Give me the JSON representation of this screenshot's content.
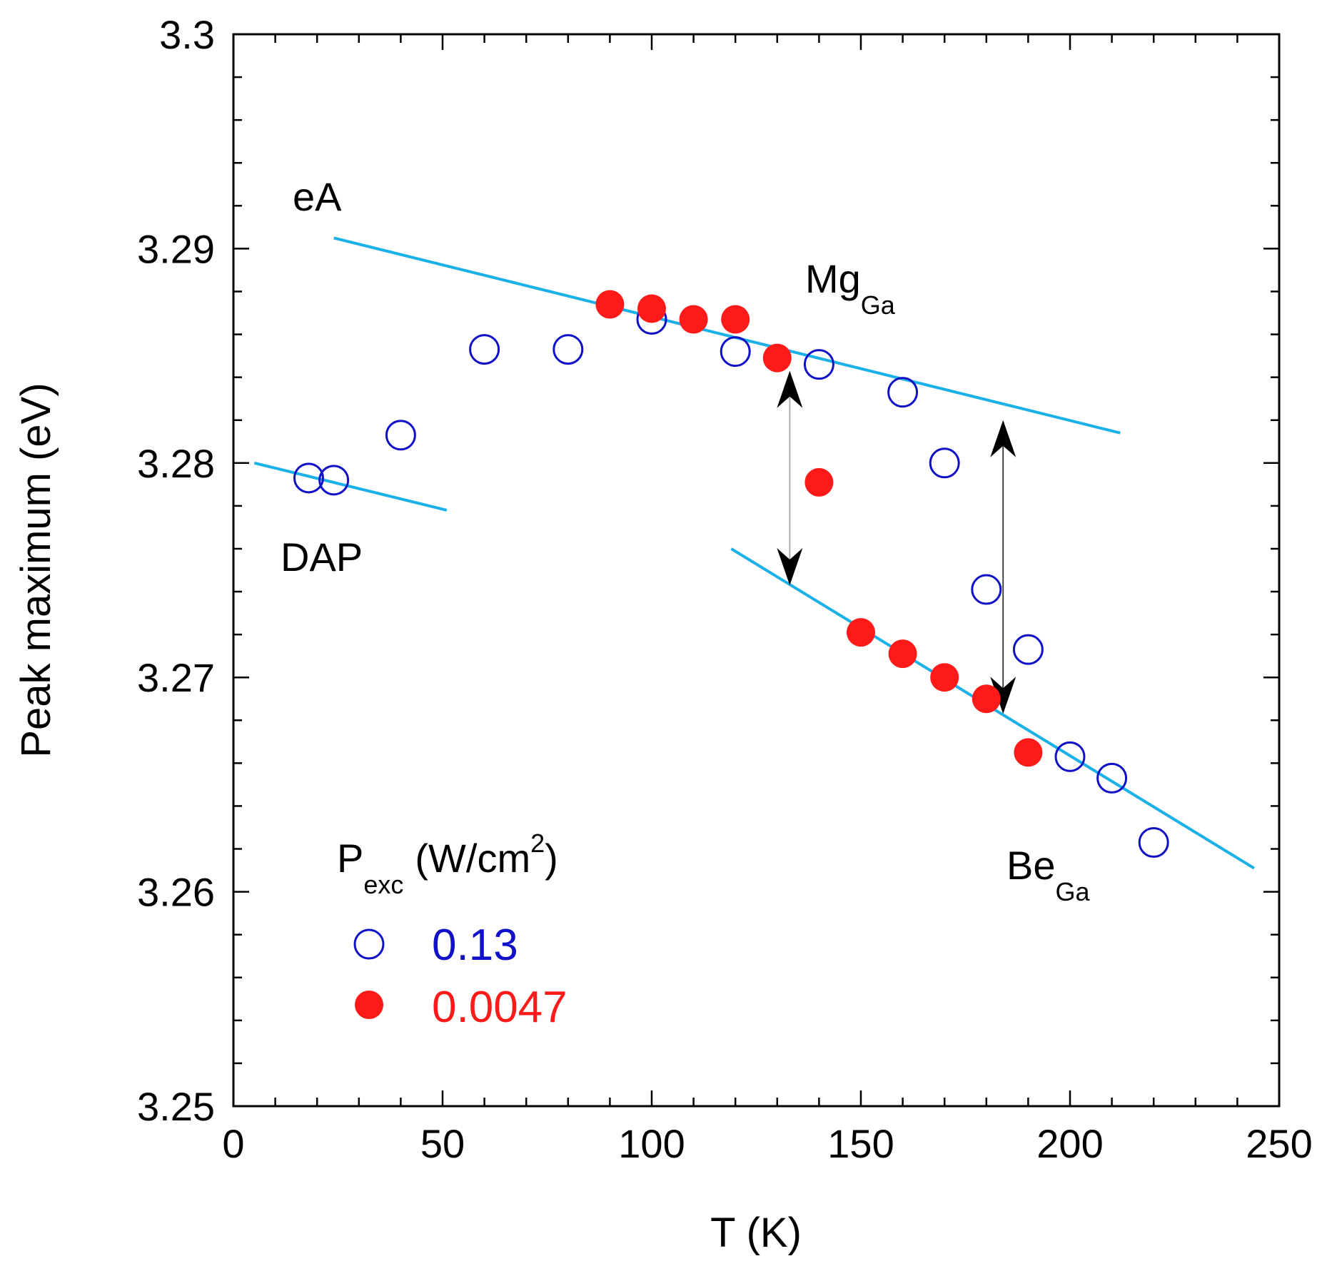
{
  "chart_data": {
    "type": "scatter",
    "xlabel": "T (K)",
    "ylabel": "Peak maximum (eV)",
    "xlim": [
      0,
      250
    ],
    "ylim": [
      3.25,
      3.3
    ],
    "x_ticks": [
      "0",
      "50",
      "100",
      "150",
      "200",
      "250"
    ],
    "y_ticks": [
      "3.25",
      "3.26",
      "3.27",
      "3.28",
      "3.29",
      "3.3"
    ],
    "legend": {
      "title_main": "P",
      "title_sub": "exc",
      "title_unit_prefix": "(W/cm",
      "title_unit_sup": "2",
      "title_unit_suffix": ")",
      "placement": "bottom-left"
    },
    "series": [
      {
        "name": "0.13",
        "marker": "open-circle",
        "color": "#1010c8",
        "points": [
          [
            18,
            3.2793
          ],
          [
            24,
            3.2792
          ],
          [
            40,
            3.2813
          ],
          [
            60,
            3.2853
          ],
          [
            80,
            3.2853
          ],
          [
            100,
            3.2867
          ],
          [
            120,
            3.2852
          ],
          [
            140,
            3.2846
          ],
          [
            160,
            3.2833
          ],
          [
            170,
            3.28
          ],
          [
            180,
            3.2741
          ],
          [
            190,
            3.2713
          ],
          [
            200,
            3.2663
          ],
          [
            210,
            3.2653
          ],
          [
            220,
            3.2623
          ]
        ]
      },
      {
        "name": "0.0047",
        "marker": "filled-circle",
        "color": "#ff1a1a",
        "points": [
          [
            90,
            3.2874
          ],
          [
            100,
            3.2872
          ],
          [
            110,
            3.2867
          ],
          [
            120,
            3.2867
          ],
          [
            130,
            3.2849
          ],
          [
            140,
            3.2791
          ],
          [
            150,
            3.2721
          ],
          [
            160,
            3.2711
          ],
          [
            170,
            3.27
          ],
          [
            180,
            3.269
          ],
          [
            190,
            3.2665
          ]
        ]
      }
    ],
    "fit_lines": [
      {
        "name": "eA",
        "color": "#1ab0e8",
        "x": [
          24,
          212
        ],
        "y": [
          3.2905,
          3.2814
        ]
      },
      {
        "name": "DAP",
        "color": "#1ab0e8",
        "x": [
          5,
          51
        ],
        "y": [
          3.28,
          3.2778
        ]
      },
      {
        "name": "Be",
        "color": "#1ab0e8",
        "x": [
          119,
          244
        ],
        "y": [
          3.276,
          3.2611
        ]
      }
    ],
    "arrows": [
      {
        "x": 133,
        "y1": 3.2843,
        "y2": 3.2743
      },
      {
        "x": 184,
        "y1": 3.282,
        "y2": 3.2683
      }
    ],
    "annotations": [
      {
        "id": "eA",
        "text": "eA",
        "sub": ""
      },
      {
        "id": "mg",
        "text": "Mg",
        "sub": "Ga"
      },
      {
        "id": "dap",
        "text": "DAP",
        "sub": ""
      },
      {
        "id": "be",
        "text": "Be",
        "sub": "Ga"
      }
    ]
  }
}
